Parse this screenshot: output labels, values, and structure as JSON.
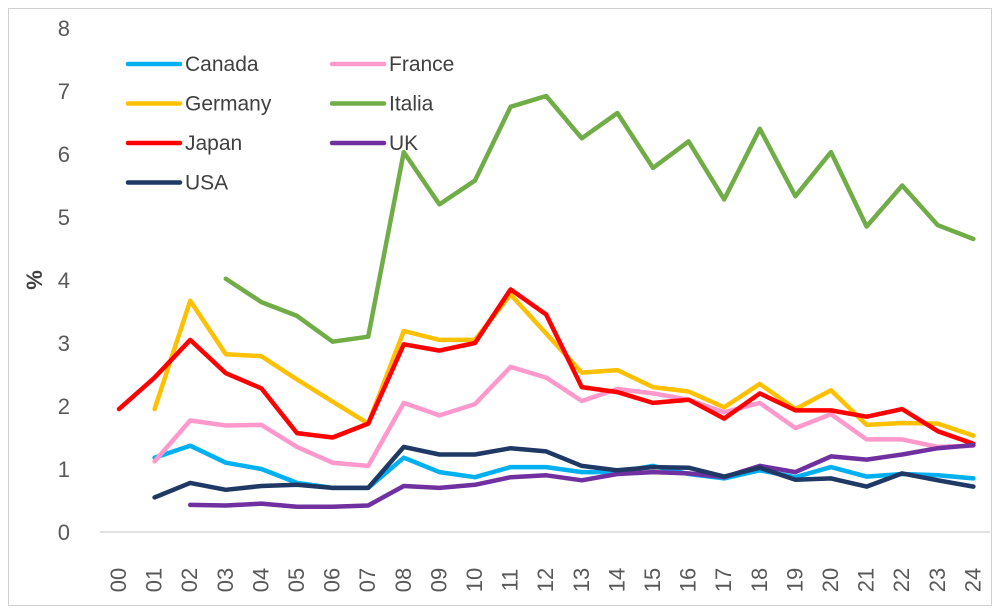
{
  "chart_data": {
    "type": "line",
    "title": "",
    "xlabel": "",
    "ylabel": "%",
    "ylim": [
      0,
      8
    ],
    "yticks": [
      "0",
      "1",
      "2",
      "3",
      "4",
      "5",
      "6",
      "7",
      "8"
    ],
    "categories": [
      "00",
      "01",
      "02",
      "03",
      "04",
      "05",
      "06",
      "07",
      "08",
      "09",
      "10",
      "11",
      "12",
      "13",
      "14",
      "15",
      "16",
      "17",
      "18",
      "19",
      "20",
      "21",
      "22",
      "23",
      "24"
    ],
    "grid": false,
    "legend": "top-left",
    "series": [
      {
        "name": "Canada",
        "color": "#00B0F0",
        "values": [
          null,
          1.18,
          1.37,
          1.1,
          1.0,
          0.78,
          0.7,
          0.7,
          1.18,
          0.95,
          0.87,
          1.03,
          1.03,
          0.95,
          0.95,
          1.05,
          0.92,
          0.85,
          0.98,
          0.87,
          1.03,
          0.88,
          0.92,
          0.9,
          0.85
        ]
      },
      {
        "name": "France",
        "color": "#FF99CC",
        "values": [
          null,
          1.12,
          1.77,
          1.69,
          1.7,
          1.35,
          1.1,
          1.05,
          2.05,
          1.85,
          2.03,
          2.62,
          2.45,
          2.08,
          2.27,
          2.2,
          2.1,
          1.9,
          2.05,
          1.65,
          1.87,
          1.47,
          1.47,
          1.35,
          1.37
        ]
      },
      {
        "name": "Germany",
        "color": "#FFC000",
        "values": [
          null,
          1.95,
          3.67,
          2.82,
          2.79,
          2.42,
          2.07,
          1.72,
          3.19,
          3.05,
          3.05,
          3.77,
          3.15,
          2.53,
          2.57,
          2.3,
          2.23,
          1.98,
          2.35,
          1.95,
          2.25,
          1.7,
          1.73,
          1.72,
          1.53
        ]
      },
      {
        "name": "Italia",
        "color": "#70AD47",
        "values": [
          null,
          null,
          null,
          4.02,
          3.65,
          3.43,
          3.02,
          3.1,
          6.03,
          5.2,
          5.58,
          6.75,
          6.92,
          6.25,
          6.65,
          5.78,
          6.2,
          5.28,
          6.4,
          5.33,
          6.03,
          4.85,
          5.5,
          4.87,
          4.65
        ]
      },
      {
        "name": "Japan",
        "color": "#FF0000",
        "values": [
          1.95,
          2.45,
          3.05,
          2.52,
          2.28,
          1.57,
          1.5,
          1.72,
          2.98,
          2.88,
          3.0,
          3.85,
          3.45,
          2.3,
          2.22,
          2.05,
          2.1,
          1.8,
          2.2,
          1.93,
          1.93,
          1.83,
          1.95,
          1.6,
          1.4
        ]
      },
      {
        "name": "UK",
        "color": "#7030A0",
        "values": [
          null,
          null,
          0.43,
          0.42,
          0.45,
          0.4,
          0.4,
          0.42,
          0.73,
          0.7,
          0.75,
          0.87,
          0.9,
          0.82,
          0.92,
          0.95,
          0.93,
          0.87,
          1.05,
          0.95,
          1.2,
          1.15,
          1.23,
          1.33,
          1.38
        ]
      },
      {
        "name": "USA",
        "color": "#1F3864",
        "values": [
          null,
          0.55,
          0.78,
          0.67,
          0.73,
          0.75,
          0.7,
          0.7,
          1.35,
          1.23,
          1.23,
          1.33,
          1.28,
          1.05,
          0.98,
          1.03,
          1.02,
          0.88,
          1.02,
          0.83,
          0.85,
          0.72,
          0.93,
          0.82,
          0.72
        ]
      }
    ]
  }
}
